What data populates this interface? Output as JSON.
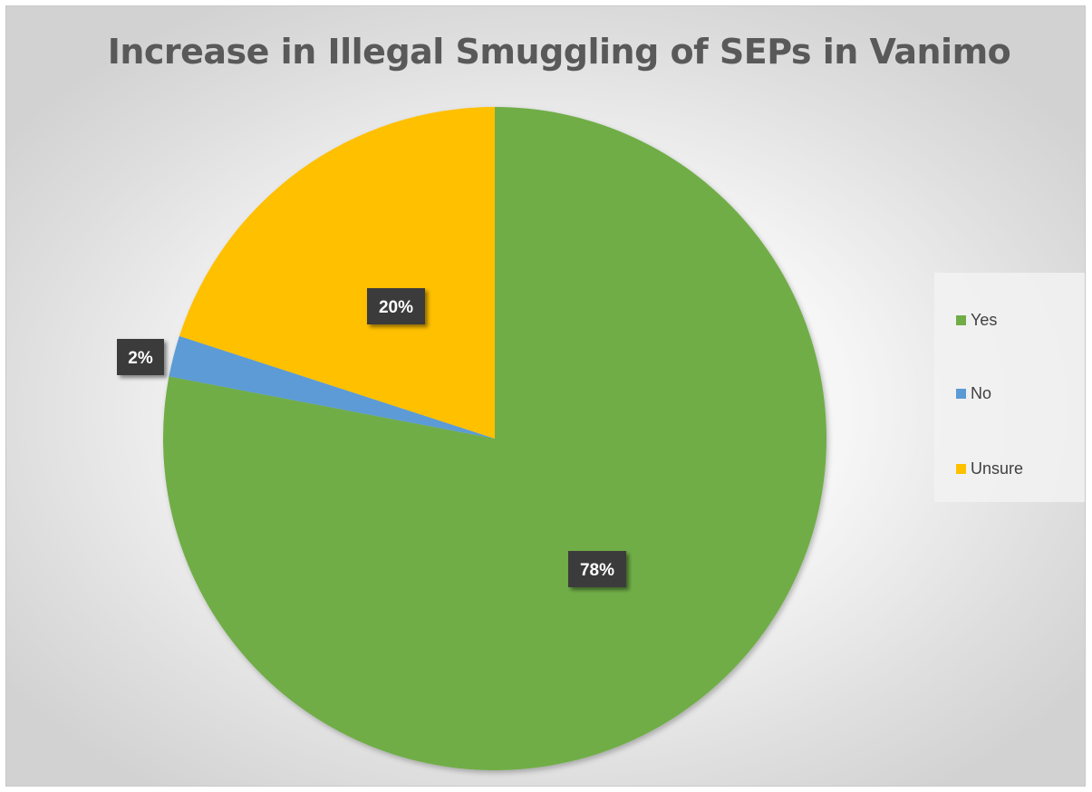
{
  "chart_data": {
    "type": "pie",
    "title": "Increase in Illegal Smuggling of SEPs in Vanimo",
    "start_angle_deg": 0,
    "direction": "clockwise",
    "legend_position": "right",
    "slices": [
      {
        "name": "Yes",
        "value": 78,
        "label": "78%",
        "color": "#70ad47"
      },
      {
        "name": "No",
        "value": 2,
        "label": "2%",
        "color": "#5b9bd5"
      },
      {
        "name": "Unsure",
        "value": 20,
        "label": "20%",
        "color": "#ffc000"
      }
    ],
    "data_label_style": {
      "background": "#3a3a3a",
      "color": "#ffffff"
    }
  }
}
